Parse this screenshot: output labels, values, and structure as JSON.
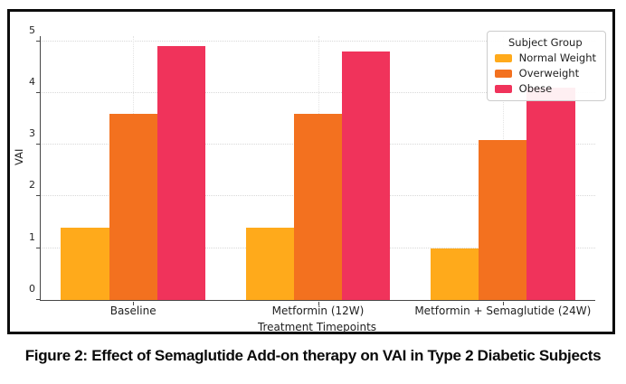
{
  "figure": {
    "caption": "Figure 2: Effect of Semaglutide Add-on therapy on VAI in Type 2 Diabetic Subjects"
  },
  "chart_data": {
    "type": "bar",
    "title": "",
    "xlabel": "Treatment Timepoints",
    "ylabel": "VAI",
    "ylim": [
      0,
      5
    ],
    "yticks": [
      0,
      1,
      2,
      3,
      4,
      5
    ],
    "grid": true,
    "categories": [
      "Baseline",
      "Metformin (12W)",
      "Metformin + Semaglutide (24W)"
    ],
    "legend": {
      "title": "Subject Group",
      "position": "upper right"
    },
    "series": [
      {
        "name": "Normal Weight",
        "color": "#FFAA1B",
        "values": [
          1.4,
          1.4,
          1.0
        ]
      },
      {
        "name": "Overweight",
        "color": "#F3711F",
        "values": [
          3.6,
          3.6,
          3.1
        ]
      },
      {
        "name": "Obese",
        "color": "#F0335B",
        "values": [
          4.9,
          4.8,
          4.1
        ]
      }
    ]
  }
}
